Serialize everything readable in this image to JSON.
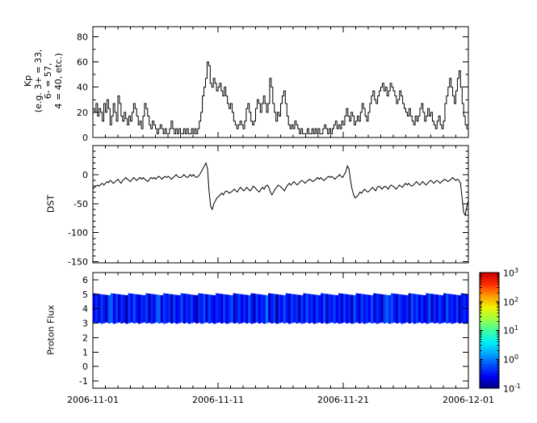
{
  "figure": {
    "bg": "#ffffff",
    "line_color": "#000000",
    "axis_color": "#000000"
  },
  "x_axis": {
    "labels": [
      "2006-11-01",
      "2006-11-11",
      "2006-11-21",
      "2006-12-01"
    ],
    "major_tick_days": [
      0,
      10,
      20,
      30
    ],
    "minor_tick_every_days": 1,
    "total_days": 30
  },
  "chart_data": [
    {
      "type": "line",
      "name": "kp",
      "style": "step",
      "color": "#000000",
      "ylabel_lines": [
        "Kp",
        "(e.g. 3+ = 33,",
        "6- = 57,",
        "4 = 40, etc.)"
      ],
      "ylim": [
        0,
        88
      ],
      "yticks": [
        0,
        20,
        40,
        60,
        80
      ],
      "minor_tick_step": 10,
      "x_start": "2006-11-01",
      "x_end": "2006-12-01",
      "sample_hours": 3,
      "values": [
        23,
        20,
        27,
        17,
        23,
        20,
        13,
        27,
        20,
        30,
        23,
        10,
        17,
        27,
        20,
        13,
        33,
        27,
        17,
        13,
        20,
        15,
        10,
        17,
        13,
        20,
        27,
        23,
        17,
        10,
        13,
        7,
        17,
        27,
        23,
        17,
        10,
        7,
        13,
        10,
        7,
        3,
        7,
        10,
        7,
        3,
        7,
        3,
        3,
        7,
        13,
        7,
        3,
        7,
        3,
        7,
        3,
        3,
        7,
        3,
        7,
        3,
        3,
        7,
        3,
        7,
        3,
        7,
        13,
        20,
        33,
        40,
        47,
        60,
        57,
        43,
        40,
        47,
        43,
        37,
        40,
        43,
        37,
        33,
        40,
        33,
        27,
        23,
        27,
        20,
        13,
        10,
        7,
        10,
        13,
        10,
        7,
        13,
        23,
        27,
        20,
        13,
        10,
        13,
        23,
        30,
        27,
        20,
        27,
        33,
        27,
        20,
        27,
        47,
        40,
        27,
        20,
        13,
        20,
        17,
        27,
        33,
        37,
        27,
        17,
        10,
        7,
        10,
        7,
        13,
        10,
        7,
        3,
        7,
        3,
        3,
        3,
        7,
        3,
        3,
        7,
        3,
        7,
        3,
        7,
        3,
        3,
        7,
        10,
        7,
        3,
        7,
        3,
        7,
        10,
        13,
        7,
        10,
        7,
        13,
        10,
        17,
        23,
        17,
        13,
        20,
        17,
        10,
        13,
        17,
        13,
        20,
        27,
        23,
        17,
        13,
        20,
        27,
        33,
        37,
        30,
        27,
        33,
        37,
        40,
        43,
        37,
        40,
        33,
        37,
        43,
        40,
        37,
        33,
        27,
        30,
        37,
        33,
        27,
        23,
        20,
        17,
        23,
        17,
        13,
        10,
        17,
        13,
        17,
        23,
        27,
        20,
        13,
        17,
        23,
        17,
        20,
        13,
        10,
        7,
        13,
        17,
        10,
        7,
        13,
        27,
        33,
        40,
        47,
        40,
        33,
        27,
        37,
        47,
        53,
        40,
        27,
        17,
        10,
        7
      ]
    },
    {
      "type": "line",
      "name": "dst",
      "color": "#000000",
      "ylabel": "DST",
      "ylim": [
        -152,
        50
      ],
      "yticks": [
        0,
        -50,
        -100,
        -150
      ],
      "minor_tick_step": 10,
      "x_start": "2006-11-01",
      "x_end": "2006-12-01",
      "sample_hours": 3,
      "values": [
        -25,
        -22,
        -20,
        -18,
        -20,
        -17,
        -15,
        -18,
        -15,
        -12,
        -14,
        -10,
        -12,
        -15,
        -13,
        -10,
        -8,
        -12,
        -15,
        -10,
        -8,
        -5,
        -8,
        -10,
        -12,
        -8,
        -5,
        -8,
        -10,
        -7,
        -5,
        -8,
        -5,
        -8,
        -10,
        -12,
        -8,
        -5,
        -7,
        -5,
        -8,
        -5,
        -3,
        -5,
        -8,
        -5,
        -3,
        -5,
        -3,
        -5,
        -8,
        -5,
        -3,
        0,
        -3,
        -5,
        -5,
        -3,
        0,
        -3,
        -5,
        -3,
        0,
        -3,
        0,
        -3,
        -5,
        -3,
        0,
        5,
        10,
        15,
        20,
        10,
        -30,
        -55,
        -60,
        -50,
        -45,
        -40,
        -38,
        -35,
        -32,
        -35,
        -30,
        -28,
        -30,
        -32,
        -30,
        -28,
        -25,
        -28,
        -30,
        -25,
        -22,
        -25,
        -28,
        -25,
        -22,
        -25,
        -28,
        -25,
        -20,
        -22,
        -25,
        -28,
        -30,
        -25,
        -22,
        -25,
        -20,
        -18,
        -22,
        -30,
        -35,
        -30,
        -25,
        -22,
        -18,
        -20,
        -22,
        -25,
        -28,
        -22,
        -18,
        -15,
        -18,
        -15,
        -12,
        -15,
        -18,
        -15,
        -12,
        -10,
        -12,
        -15,
        -12,
        -10,
        -8,
        -10,
        -12,
        -10,
        -8,
        -5,
        -8,
        -5,
        -8,
        -10,
        -8,
        -5,
        -3,
        -5,
        -3,
        -5,
        -8,
        -5,
        -3,
        0,
        -3,
        -5,
        0,
        5,
        15,
        10,
        -10,
        -25,
        -35,
        -40,
        -38,
        -35,
        -30,
        -32,
        -28,
        -25,
        -28,
        -30,
        -28,
        -25,
        -22,
        -25,
        -28,
        -22,
        -20,
        -22,
        -25,
        -22,
        -20,
        -22,
        -25,
        -20,
        -18,
        -20,
        -22,
        -25,
        -22,
        -18,
        -20,
        -22,
        -18,
        -15,
        -18,
        -15,
        -18,
        -20,
        -18,
        -15,
        -12,
        -15,
        -18,
        -15,
        -12,
        -15,
        -18,
        -15,
        -12,
        -10,
        -12,
        -15,
        -12,
        -10,
        -12,
        -15,
        -12,
        -10,
        -8,
        -10,
        -12,
        -10,
        -8,
        -5,
        -8,
        -10,
        -8,
        -10,
        -15,
        -40,
        -65,
        -70,
        -55,
        -45
      ]
    },
    {
      "type": "heatmap",
      "name": "protonflux",
      "ylabel": "Proton Flux",
      "ylim": [
        -1.5,
        6.5
      ],
      "yticks": [
        6,
        5,
        4,
        3,
        2,
        1,
        0,
        -1
      ],
      "band_y": [
        3,
        5
      ],
      "x_start": "2006-11-01",
      "x_end": "2006-12-01",
      "log10_flux_values": [
        -0.6,
        -0.4,
        -0.7,
        -0.3,
        -0.5,
        -0.8,
        -0.2,
        -0.1,
        -0.6,
        -0.3,
        -0.7,
        -0.4,
        -0.5,
        -0.9,
        -0.3,
        -0.6,
        -0.2,
        -0.5,
        -0.7,
        -0.4,
        -0.5,
        -0.3,
        -0.8,
        -0.4,
        -0.6,
        -0.2,
        -0.1,
        -0.7,
        -0.3,
        -0.5,
        -0.4,
        -0.8,
        -0.3,
        -0.6,
        -0.5,
        -0.2,
        -0.7,
        -0.4,
        -0.5,
        -0.3,
        -0.6,
        -0.9,
        -0.4,
        -0.5,
        -0.2,
        -0.7,
        -0.3,
        -0.5,
        -0.6,
        -0.4,
        -0.5,
        -0.7,
        -0.3,
        -0.6,
        -0.4,
        -0.2,
        -0.8,
        -0.5,
        -0.3,
        -0.6,
        -0.4,
        -0.7,
        -0.2,
        -0.5,
        -0.8,
        -0.3,
        -0.6,
        -0.4,
        -0.5,
        0.0,
        -0.7,
        -0.5,
        -0.3,
        -0.9,
        -0.4,
        -0.6,
        -0.2,
        -0.5,
        -0.7,
        -0.3,
        -0.5,
        -0.4,
        -0.8,
        -0.3,
        -0.6,
        -0.2,
        -0.5,
        -0.4,
        -0.7,
        -0.3,
        -0.5,
        -0.6,
        -0.2,
        -0.8,
        -0.4,
        -0.5,
        -0.3,
        -0.6,
        -0.4,
        -0.7,
        -0.3,
        -0.6,
        -0.4,
        -0.8,
        -0.2,
        -0.5,
        -0.7,
        -0.3,
        -0.5,
        -0.4,
        -0.6,
        -0.2,
        -0.7,
        -0.4,
        -0.5,
        -0.8,
        -0.3,
        -0.1,
        -0.4,
        -0.2,
        -0.5,
        -0.7,
        -0.3,
        -0.5,
        -0.6,
        -0.4,
        -0.8,
        -0.2,
        -0.5,
        -0.3,
        -0.6,
        -0.4,
        -0.7,
        -0.5,
        -0.2,
        -0.8,
        -0.4,
        -0.6,
        -0.3,
        -0.5,
        -0.7,
        -0.2,
        -0.5,
        -0.4,
        -0.6,
        -0.3,
        -0.8,
        -0.5,
        -0.4,
        -0.6
      ]
    }
  ],
  "colorbar": {
    "base": "10",
    "exponents": [
      "3",
      "2",
      "1",
      "0",
      "-1"
    ],
    "log10_range": [
      -1,
      3
    ],
    "colors": [
      "#000080",
      "#0000f2",
      "#0050ff",
      "#00a8ff",
      "#00f2f2",
      "#40ff9f",
      "#9fff40",
      "#f2f200",
      "#ff9700",
      "#ff2a00",
      "#cc0000"
    ]
  }
}
